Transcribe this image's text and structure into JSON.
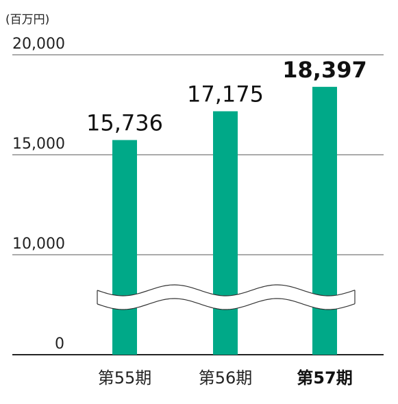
{
  "chart_data": {
    "type": "bar",
    "unit_label": "(百万円)",
    "categories": [
      "第55期",
      "第56期",
      "第57期"
    ],
    "values": [
      15736,
      17175,
      18397
    ],
    "value_labels": [
      "15,736",
      "17,175",
      "18,397"
    ],
    "highlight_index": 2,
    "y_ticks": [
      {
        "value": 20000,
        "label": "20,000"
      },
      {
        "value": 15000,
        "label": "15,000"
      },
      {
        "value": 10000,
        "label": "10,000"
      },
      {
        "value": 0,
        "label": "0"
      }
    ],
    "ylim": [
      0,
      20000
    ],
    "axis_break": true,
    "grid": true,
    "title": "",
    "xlabel": "",
    "ylabel": ""
  },
  "colors": {
    "bar": "#00a988",
    "grid": "#555555",
    "baseline": "#222222",
    "break_fill": "#ffffff",
    "break_stroke": "#333333"
  }
}
